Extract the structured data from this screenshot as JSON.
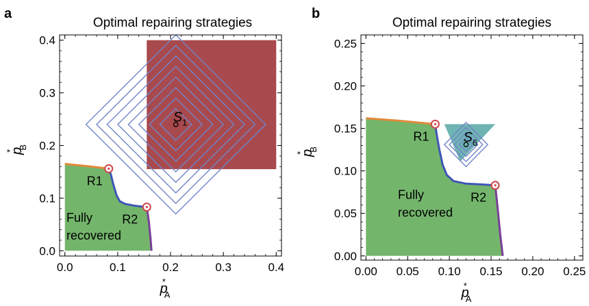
{
  "colors": {
    "recovered_region": "#74b56c",
    "target_region_a": "#a8494d",
    "target_region_b": "#55a7a6",
    "boundary": "#3f56b5",
    "boundary_top": "#e28a3b",
    "boundary_right": "#7a3f98",
    "contours": "#7184c9",
    "point_marker": "#d0454a"
  },
  "chart_data": [
    {
      "panel": "a",
      "type": "area",
      "title": "Optimal repairing strategies",
      "xlabel": "p",
      "xlabel_sub": "A",
      "xlabel_sup": "*",
      "ylabel": "p",
      "ylabel_sub": "B",
      "ylabel_sup": "*",
      "xlim": [
        -0.01,
        0.41
      ],
      "ylim": [
        -0.01,
        0.41
      ],
      "xticks": [
        "0.0",
        "0.1",
        "0.2",
        "0.3",
        "0.4"
      ],
      "xtick_values": [
        0.0,
        0.1,
        0.2,
        0.3,
        0.4
      ],
      "yticks": [
        "0.0",
        "0.1",
        "0.2",
        "0.3",
        "0.4"
      ],
      "ytick_values": [
        0.0,
        0.1,
        0.2,
        0.3,
        0.4
      ],
      "grid": false,
      "fully_recovered_label": [
        "Fully",
        "recovered"
      ],
      "target_region": {
        "x": [
          0.155,
          0.4
        ],
        "y": [
          0.155,
          0.4
        ]
      },
      "target_point": {
        "label": "S",
        "sub": "1",
        "x": 0.21,
        "y": 0.24
      },
      "contours": {
        "center": [
          0.21,
          0.24
        ],
        "radii": [
          0.03,
          0.05,
          0.07,
          0.09,
          0.11,
          0.13,
          0.15,
          0.17
        ]
      },
      "boundary": {
        "top": [
          [
            0.0,
            0.165
          ],
          [
            0.04,
            0.161
          ],
          [
            0.083,
            0.156
          ]
        ],
        "middle": [
          [
            0.083,
            0.156
          ],
          [
            0.087,
            0.145
          ],
          [
            0.092,
            0.125
          ],
          [
            0.098,
            0.105
          ],
          [
            0.104,
            0.094
          ],
          [
            0.114,
            0.089
          ],
          [
            0.13,
            0.086
          ],
          [
            0.145,
            0.084
          ],
          [
            0.155,
            0.083
          ]
        ],
        "right": [
          [
            0.155,
            0.083
          ],
          [
            0.159,
            0.055
          ],
          [
            0.162,
            0.025
          ],
          [
            0.164,
            0.0
          ]
        ]
      },
      "recovered_fill": [
        [
          0.0,
          0.0
        ],
        [
          0.0,
          0.165
        ],
        [
          0.04,
          0.161
        ],
        [
          0.083,
          0.156
        ],
        [
          0.087,
          0.145
        ],
        [
          0.092,
          0.125
        ],
        [
          0.098,
          0.105
        ],
        [
          0.104,
          0.094
        ],
        [
          0.114,
          0.089
        ],
        [
          0.13,
          0.086
        ],
        [
          0.145,
          0.084
        ],
        [
          0.155,
          0.083
        ],
        [
          0.159,
          0.055
        ],
        [
          0.162,
          0.025
        ],
        [
          0.164,
          0.0
        ]
      ],
      "points": [
        {
          "label": "R1",
          "x": 0.083,
          "y": 0.156
        },
        {
          "label": "R2",
          "x": 0.155,
          "y": 0.083
        }
      ]
    },
    {
      "panel": "b",
      "type": "area",
      "title": "Optimal repairing strategies",
      "xlabel": "p",
      "xlabel_sub": "A",
      "xlabel_sup": "*",
      "ylabel": "p",
      "ylabel_sub": "B",
      "ylabel_sup": "*",
      "xlim": [
        -0.006,
        0.26
      ],
      "ylim": [
        -0.005,
        0.26
      ],
      "xticks": [
        "0.00",
        "0.05",
        "0.10",
        "0.15",
        "0.20",
        "0.25"
      ],
      "xtick_values": [
        0.0,
        0.05,
        0.1,
        0.15,
        0.2,
        0.25
      ],
      "yticks": [
        "0.00",
        "0.05",
        "0.10",
        "0.15",
        "0.20",
        "0.25"
      ],
      "ytick_values": [
        0.0,
        0.05,
        0.1,
        0.15,
        0.2,
        0.25
      ],
      "grid": false,
      "fully_recovered_label": [
        "Fully",
        "recovered"
      ],
      "target_region_polygon": [
        [
          0.094,
          0.155
        ],
        [
          0.155,
          0.155
        ],
        [
          0.113,
          0.111
        ]
      ],
      "target_point": {
        "label": "S",
        "sub": "6",
        "x": 0.12,
        "y": 0.131
      },
      "contours": {
        "center": [
          0.12,
          0.131
        ],
        "radii": [
          0.008,
          0.014,
          0.02,
          0.026
        ]
      },
      "boundary": {
        "top": [
          [
            0.0,
            0.162
          ],
          [
            0.04,
            0.159
          ],
          [
            0.083,
            0.155
          ]
        ],
        "middle": [
          [
            0.083,
            0.155
          ],
          [
            0.085,
            0.142
          ],
          [
            0.088,
            0.125
          ],
          [
            0.092,
            0.107
          ],
          [
            0.097,
            0.095
          ],
          [
            0.105,
            0.088
          ],
          [
            0.12,
            0.085
          ],
          [
            0.14,
            0.084
          ],
          [
            0.155,
            0.083
          ]
        ],
        "right": [
          [
            0.155,
            0.083
          ],
          [
            0.158,
            0.055
          ],
          [
            0.161,
            0.025
          ],
          [
            0.164,
            0.0
          ]
        ]
      },
      "recovered_fill": [
        [
          0.0,
          0.0
        ],
        [
          0.0,
          0.162
        ],
        [
          0.04,
          0.159
        ],
        [
          0.083,
          0.155
        ],
        [
          0.085,
          0.142
        ],
        [
          0.088,
          0.125
        ],
        [
          0.092,
          0.107
        ],
        [
          0.097,
          0.095
        ],
        [
          0.105,
          0.088
        ],
        [
          0.12,
          0.085
        ],
        [
          0.14,
          0.084
        ],
        [
          0.155,
          0.083
        ],
        [
          0.158,
          0.055
        ],
        [
          0.161,
          0.025
        ],
        [
          0.164,
          0.0
        ]
      ],
      "points": [
        {
          "label": "R1",
          "x": 0.083,
          "y": 0.155
        },
        {
          "label": "R2",
          "x": 0.155,
          "y": 0.083
        }
      ]
    }
  ]
}
